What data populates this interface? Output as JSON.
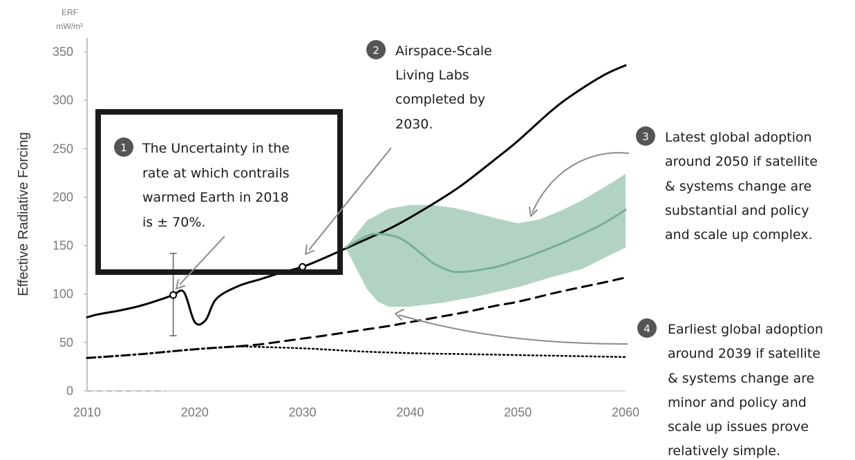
{
  "chart_data": {
    "type": "line",
    "ylabel": "Effective Radiative Forcing",
    "y_unit_top": "ERF",
    "y_unit_bottom": "mW/m²",
    "xlim": [
      2010,
      2060
    ],
    "ylim": [
      0,
      350
    ],
    "x_ticks": [
      "2010",
      "2020",
      "2030",
      "2040",
      "2050",
      "2060"
    ],
    "y_ticks": [
      "0",
      "50",
      "100",
      "150",
      "200",
      "250",
      "300",
      "350"
    ],
    "grid": false,
    "legend": "none",
    "series": [
      {
        "style": "solid",
        "color": "#000000",
        "x": [
          2010,
          2011,
          2013,
          2015,
          2017,
          2018,
          2019,
          2020,
          2021,
          2022,
          2024,
          2026,
          2028,
          2030,
          2032,
          2035,
          2038,
          2040,
          2043,
          2045,
          2048,
          2050,
          2053,
          2055,
          2058,
          2060
        ],
        "y": [
          76,
          79,
          83,
          88,
          95,
          99,
          102,
          71,
          73,
          95,
          108,
          115,
          122,
          128,
          137,
          152,
          167,
          179,
          199,
          214,
          240,
          258,
          288,
          305,
          326,
          336
        ]
      },
      {
        "style": "dashed",
        "color": "#000000",
        "x": [
          2024,
          2026,
          2028,
          2030,
          2032,
          2035,
          2038,
          2040,
          2043,
          2045,
          2048,
          2050,
          2053,
          2055,
          2058,
          2060
        ],
        "y": [
          46,
          48,
          51,
          54,
          57,
          62,
          67,
          71,
          77,
          81,
          88,
          92,
          100,
          105,
          112,
          117
        ]
      },
      {
        "style": "dashdot",
        "color": "#000000",
        "x": [
          2010,
          2015,
          2020,
          2024
        ],
        "y": [
          34,
          38,
          43,
          46
        ]
      },
      {
        "style": "dotted",
        "color": "#000000",
        "x": [
          2024,
          2030,
          2035,
          2040,
          2045,
          2050,
          2055,
          2060
        ],
        "y": [
          46,
          44,
          41,
          39,
          38,
          37,
          36,
          35
        ]
      },
      {
        "style": "solid",
        "color": "#78ae96",
        "x": [
          2034,
          2036,
          2037,
          2038,
          2039,
          2040,
          2041,
          2042,
          2043,
          2044,
          2045,
          2046,
          2047,
          2048,
          2050,
          2052,
          2054,
          2056,
          2058,
          2060
        ],
        "y": [
          148,
          160,
          162,
          161,
          158,
          151,
          142,
          133,
          127,
          123,
          123,
          124,
          126,
          128,
          135,
          143,
          152,
          162,
          173,
          187
        ]
      }
    ],
    "band": {
      "color": "#a4cbb7",
      "x_upper": [
        2034,
        2036,
        2038,
        2040,
        2042,
        2044,
        2046,
        2048,
        2050,
        2052,
        2054,
        2056,
        2058,
        2060
      ],
      "y_upper": [
        148,
        176,
        188,
        192,
        192,
        189,
        184,
        178,
        173,
        177,
        186,
        197,
        210,
        224
      ],
      "x_lower": [
        2034,
        2036,
        2037,
        2038,
        2040,
        2043,
        2046,
        2050,
        2053,
        2056,
        2058,
        2060
      ],
      "y_lower": [
        148,
        105,
        92,
        87,
        87,
        91,
        97,
        107,
        117,
        126,
        137,
        148
      ]
    },
    "markers": [
      {
        "x": 2018,
        "y": 99
      },
      {
        "x": 2030,
        "y": 128
      }
    ],
    "error_bar": {
      "x": 2018,
      "y": 99,
      "low": 57,
      "high": 142
    },
    "annotations": [
      {
        "num": "1",
        "lines": [
          "The Uncertainty in the",
          "rate at which contrails",
          "warmed Earth in 2018",
          "is ± 70%."
        ]
      },
      {
        "num": "2",
        "lines": [
          "Airspace-Scale",
          "Living Labs",
          "completed by",
          "2030."
        ]
      },
      {
        "num": "3",
        "lines": [
          "Latest global adoption",
          "around 2050 if satellite",
          "& systems change are",
          "substantial and policy",
          "and scale up complex."
        ]
      },
      {
        "num": "4",
        "lines": [
          "Earliest global adoption",
          "around 2039 if satellite",
          "& systems change are",
          "minor and policy and",
          "scale up issues prove",
          "relatively simple."
        ]
      }
    ],
    "colors": {
      "axis": "#9a9a9a",
      "badge": "#555555",
      "arrow": "#8a8a8a",
      "frame": "#1a1a1a"
    }
  }
}
